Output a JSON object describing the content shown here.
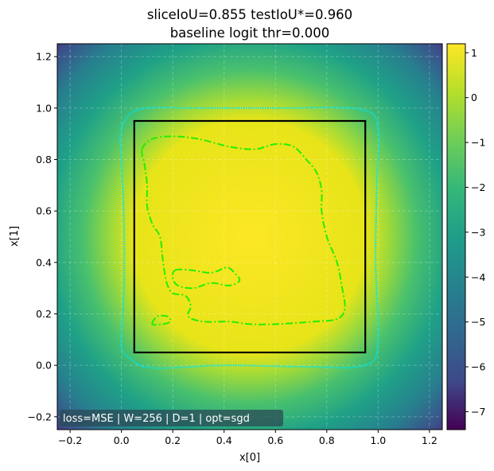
{
  "chart_data": {
    "type": "heatmap",
    "title_lines": [
      "sliceIoU=0.855  testIoU*=0.960",
      "baseline logit thr=0.000"
    ],
    "xlabel": "x[0]",
    "ylabel": "x[1]",
    "xlim": [
      -0.25,
      1.25
    ],
    "ylim": [
      -0.25,
      1.25
    ],
    "xticks": [
      -0.2,
      0.0,
      0.2,
      0.4,
      0.6,
      0.8,
      1.0,
      1.2
    ],
    "xtick_labels": [
      "−0.2",
      "0.0",
      "0.2",
      "0.4",
      "0.6",
      "0.8",
      "1.0",
      "1.2"
    ],
    "yticks": [
      -0.2,
      0.0,
      0.2,
      0.4,
      0.6,
      0.8,
      1.0,
      1.2
    ],
    "ytick_labels": [
      "−0.2",
      "0.0",
      "0.2",
      "0.4",
      "0.6",
      "0.8",
      "1.0",
      "1.2"
    ],
    "grid": true,
    "colormap": "viridis",
    "colorbar": {
      "range": [
        -7.4,
        1.2
      ],
      "ticks": [
        1,
        0,
        -1,
        -2,
        -3,
        -4,
        -5,
        -6,
        -7
      ],
      "tick_labels": [
        "1",
        "0",
        "−1",
        "−2",
        "−3",
        "−4",
        "−5",
        "−6",
        "−7"
      ]
    },
    "true_box": {
      "x0": 0.05,
      "y0": 0.05,
      "x1": 0.95,
      "y1": 0.95,
      "color": "#000000"
    },
    "threshold_contour": {
      "color": "#00e5ee",
      "points": [
        [
          0.0,
          0.08
        ],
        [
          0.01,
          0.3
        ],
        [
          0.01,
          0.55
        ],
        [
          0.0,
          0.8
        ],
        [
          0.0,
          0.92
        ],
        [
          0.07,
          0.995
        ],
        [
          0.3,
          1.0
        ],
        [
          0.6,
          1.0
        ],
        [
          0.93,
          0.995
        ],
        [
          1.0,
          0.92
        ],
        [
          0.995,
          0.7
        ],
        [
          0.99,
          0.4
        ],
        [
          1.0,
          0.1
        ],
        [
          0.95,
          0.0
        ],
        [
          0.7,
          -0.005
        ],
        [
          0.4,
          0.0
        ],
        [
          0.12,
          -0.01
        ],
        [
          0.03,
          0.03
        ]
      ]
    },
    "predicted_contours": {
      "color": "#22ee00",
      "main": [
        [
          0.08,
          0.84
        ],
        [
          0.12,
          0.88
        ],
        [
          0.2,
          0.89
        ],
        [
          0.3,
          0.88
        ],
        [
          0.42,
          0.85
        ],
        [
          0.52,
          0.84
        ],
        [
          0.6,
          0.86
        ],
        [
          0.67,
          0.85
        ],
        [
          0.72,
          0.8
        ],
        [
          0.76,
          0.75
        ],
        [
          0.78,
          0.68
        ],
        [
          0.78,
          0.6
        ],
        [
          0.8,
          0.5
        ],
        [
          0.84,
          0.4
        ],
        [
          0.86,
          0.3
        ],
        [
          0.87,
          0.22
        ],
        [
          0.84,
          0.18
        ],
        [
          0.75,
          0.17
        ],
        [
          0.6,
          0.16
        ],
        [
          0.5,
          0.16
        ],
        [
          0.42,
          0.17
        ],
        [
          0.32,
          0.17
        ],
        [
          0.26,
          0.19
        ],
        [
          0.27,
          0.23
        ],
        [
          0.25,
          0.27
        ],
        [
          0.2,
          0.28
        ],
        [
          0.18,
          0.31
        ],
        [
          0.17,
          0.35
        ],
        [
          0.16,
          0.42
        ],
        [
          0.15,
          0.5
        ],
        [
          0.12,
          0.55
        ],
        [
          0.1,
          0.62
        ],
        [
          0.1,
          0.7
        ],
        [
          0.09,
          0.78
        ]
      ],
      "inner_lobe": [
        [
          0.21,
          0.37
        ],
        [
          0.27,
          0.37
        ],
        [
          0.35,
          0.36
        ],
        [
          0.41,
          0.38
        ],
        [
          0.44,
          0.36
        ],
        [
          0.46,
          0.33
        ],
        [
          0.42,
          0.31
        ],
        [
          0.35,
          0.32
        ],
        [
          0.28,
          0.3
        ],
        [
          0.22,
          0.31
        ],
        [
          0.2,
          0.34
        ]
      ],
      "small_lobe": [
        [
          0.12,
          0.16
        ],
        [
          0.14,
          0.19
        ],
        [
          0.18,
          0.19
        ],
        [
          0.19,
          0.17
        ],
        [
          0.16,
          0.16
        ]
      ]
    },
    "annotation": "loss=MSE | W=256 | D=1 | opt=sgd"
  }
}
